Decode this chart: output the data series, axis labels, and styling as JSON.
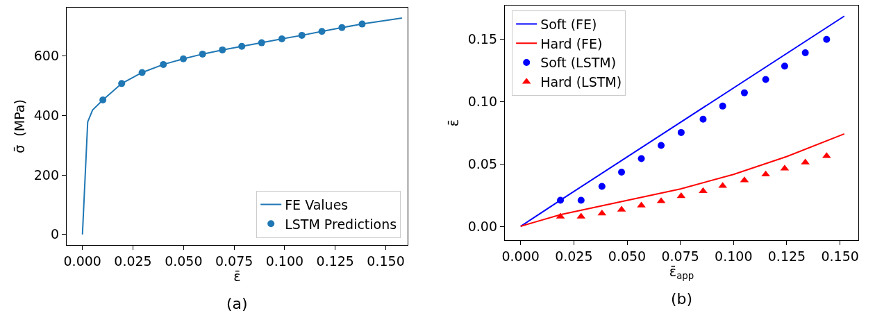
{
  "chart_data": [
    {
      "type": "line",
      "xlabel": "ε̄",
      "ylabel": "σ̄  (MPa)",
      "annotations": [
        "(a)"
      ],
      "legend": "bottom right",
      "grid": false,
      "xlim": [
        -0.0078,
        0.1608
      ],
      "ylim": [
        -35.5,
        762
      ],
      "xticks": [
        {
          "value": 0,
          "label": "0.000"
        },
        {
          "value": 0.025,
          "label": "0.025"
        },
        {
          "value": 0.05,
          "label": "0.050"
        },
        {
          "value": 0.075,
          "label": "0.075"
        },
        {
          "value": 0.1,
          "label": "0.100"
        },
        {
          "value": 0.125,
          "label": "0.125"
        },
        {
          "value": 0.15,
          "label": "0.150"
        }
      ],
      "yticks": [
        0,
        200,
        400,
        600
      ],
      "series": [
        {
          "name": "FE Values",
          "color": "#1f77b4",
          "marker": "none",
          "line_style": "solid",
          "x": [
            0,
            0.0026,
            0.005,
            0.0101,
            0.0194,
            0.0295,
            0.04,
            0.0499,
            0.0594,
            0.0692,
            0.0788,
            0.0886,
            0.0986,
            0.1085,
            0.1184,
            0.1283,
            0.1383,
            0.158
          ],
          "values": [
            0,
            378,
            418,
            452,
            507,
            544,
            571,
            590,
            606,
            620,
            632,
            644,
            657,
            669,
            682,
            695,
            707,
            727
          ]
        },
        {
          "name": "LSTM Predictions",
          "type": "scatter",
          "color": "#1f77b4",
          "marker": "circle",
          "x": [
            0.0101,
            0.0194,
            0.0295,
            0.04,
            0.0499,
            0.0594,
            0.0692,
            0.0788,
            0.0886,
            0.0986,
            0.1085,
            0.1184,
            0.1283,
            0.1383
          ],
          "values": [
            452,
            507,
            544,
            571,
            590,
            606,
            620,
            632,
            644,
            657,
            669,
            682,
            695,
            707
          ]
        }
      ]
    },
    {
      "type": "line",
      "xlabel": "ε̄$_{app}$",
      "ylabel": "ε̄",
      "annotations": [
        "(b)"
      ],
      "legend": "top left",
      "grid": false,
      "xlim": [
        -0.0074,
        0.1586
      ],
      "ylim": [
        -0.0111,
        0.1772
      ],
      "xticks": [
        {
          "value": 0,
          "label": "0.000"
        },
        {
          "value": 0.025,
          "label": "0.025"
        },
        {
          "value": 0.05,
          "label": "0.050"
        },
        {
          "value": 0.075,
          "label": "0.075"
        },
        {
          "value": 0.1,
          "label": "0.100"
        },
        {
          "value": 0.125,
          "label": "0.125"
        },
        {
          "value": 0.15,
          "label": "0.150"
        }
      ],
      "yticks": [
        {
          "value": 0,
          "label": "0.00"
        },
        {
          "value": 0.05,
          "label": "0.05"
        },
        {
          "value": 0.1,
          "label": "0.10"
        },
        {
          "value": 0.15,
          "label": "0.15"
        }
      ],
      "series": [
        {
          "name": "Soft (FE)",
          "color": "#0000ff",
          "marker": "none",
          "line_style": "solid",
          "x": [
            0,
            0.0187,
            0.152
          ],
          "values": [
            0,
            0.021,
            0.1687
          ]
        },
        {
          "name": "Hard (FE)",
          "color": "#ff0000",
          "marker": "none",
          "line_style": "solid",
          "x": [
            0,
            0.0065,
            0.0187,
            0.075,
            0.1,
            0.125,
            0.152
          ],
          "values": [
            0,
            0.0033,
            0.0094,
            0.03,
            0.0417,
            0.056,
            0.0742
          ]
        },
        {
          "name": "Soft (LSTM)",
          "type": "scatter",
          "color": "#0000ff",
          "marker": "circle",
          "x": [
            0.0187,
            0.0284,
            0.0382,
            0.0474,
            0.0567,
            0.066,
            0.0754,
            0.0857,
            0.0949,
            0.1051,
            0.1151,
            0.124,
            0.1337,
            0.1437
          ],
          "values": [
            0.0209,
            0.0209,
            0.0321,
            0.0435,
            0.0544,
            0.0649,
            0.0753,
            0.086,
            0.0965,
            0.1072,
            0.1179,
            0.1286,
            0.1393,
            0.15
          ]
        },
        {
          "name": "Hard (LSTM)",
          "type": "scatter",
          "color": "#ff0000",
          "marker": "triangle",
          "x": [
            0.0187,
            0.0284,
            0.0382,
            0.0474,
            0.0567,
            0.066,
            0.0754,
            0.0857,
            0.0949,
            0.1051,
            0.1151,
            0.124,
            0.1337,
            0.1437
          ],
          "values": [
            0.0078,
            0.0078,
            0.0103,
            0.0134,
            0.0167,
            0.0203,
            0.0243,
            0.0283,
            0.0325,
            0.037,
            0.0417,
            0.0464,
            0.0513,
            0.0564
          ]
        }
      ]
    }
  ]
}
